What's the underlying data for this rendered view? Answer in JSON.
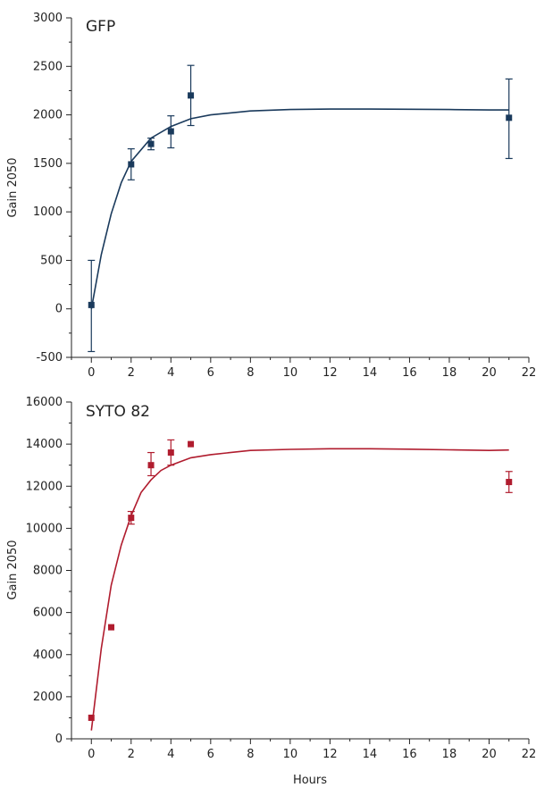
{
  "chart_data": [
    {
      "type": "scatter",
      "title": "GFP",
      "xlabel": "",
      "ylabel": "Gain 2050",
      "xlim": [
        -1,
        22
      ],
      "ylim": [
        -500,
        3000
      ],
      "x_ticks": [
        0,
        2,
        4,
        6,
        8,
        10,
        12,
        14,
        16,
        18,
        20,
        22
      ],
      "y_ticks": [
        -500,
        0,
        500,
        1000,
        1500,
        2000,
        2500,
        3000
      ],
      "color": "#1a3a5c",
      "grid": false,
      "points": [
        {
          "x": 0,
          "y": 40,
          "err_low": -440,
          "err_high": 500
        },
        {
          "x": 2,
          "y": 1490,
          "err_low": 1330,
          "err_high": 1650
        },
        {
          "x": 3,
          "y": 1700,
          "err_low": 1640,
          "err_high": 1760
        },
        {
          "x": 4,
          "y": 1830,
          "err_low": 1660,
          "err_high": 1990
        },
        {
          "x": 5,
          "y": 2200,
          "err_low": 1890,
          "err_high": 2510
        },
        {
          "x": 21,
          "y": 1970,
          "err_low": 1550,
          "err_high": 2370
        }
      ],
      "fit": {
        "x": [
          0,
          0.5,
          1,
          1.5,
          2,
          3,
          4,
          5,
          6,
          8,
          10,
          12,
          14,
          16,
          18,
          20,
          21
        ],
        "y": [
          0,
          560,
          980,
          1300,
          1520,
          1760,
          1880,
          1960,
          2000,
          2040,
          2055,
          2060,
          2060,
          2058,
          2055,
          2050,
          2050
        ]
      }
    },
    {
      "type": "scatter",
      "title": "SYTO 82",
      "xlabel": "Hours",
      "ylabel": "Gain 2050",
      "xlim": [
        -1,
        22
      ],
      "ylim": [
        0,
        16000
      ],
      "x_ticks": [
        0,
        2,
        4,
        6,
        8,
        10,
        12,
        14,
        16,
        18,
        20,
        22
      ],
      "y_ticks": [
        0,
        2000,
        4000,
        6000,
        8000,
        10000,
        12000,
        14000,
        16000
      ],
      "color": "#b01c2e",
      "grid": false,
      "points": [
        {
          "x": 0,
          "y": 1000
        },
        {
          "x": 1,
          "y": 5300
        },
        {
          "x": 2,
          "y": 10500,
          "err_low": 10200,
          "err_high": 10800
        },
        {
          "x": 3,
          "y": 13000,
          "err_low": 12500,
          "err_high": 13600
        },
        {
          "x": 4,
          "y": 13600,
          "err_low": 13000,
          "err_high": 14200
        },
        {
          "x": 5,
          "y": 14000
        },
        {
          "x": 21,
          "y": 12200,
          "err_low": 11700,
          "err_high": 12700
        }
      ],
      "fit": {
        "x": [
          0,
          0.5,
          1,
          1.5,
          2,
          2.5,
          3,
          3.5,
          4,
          5,
          6,
          8,
          10,
          12,
          14,
          16,
          18,
          20,
          21
        ],
        "y": [
          400,
          4300,
          7300,
          9200,
          10600,
          11700,
          12300,
          12750,
          13000,
          13350,
          13500,
          13700,
          13750,
          13780,
          13780,
          13760,
          13730,
          13700,
          13720
        ]
      }
    }
  ]
}
